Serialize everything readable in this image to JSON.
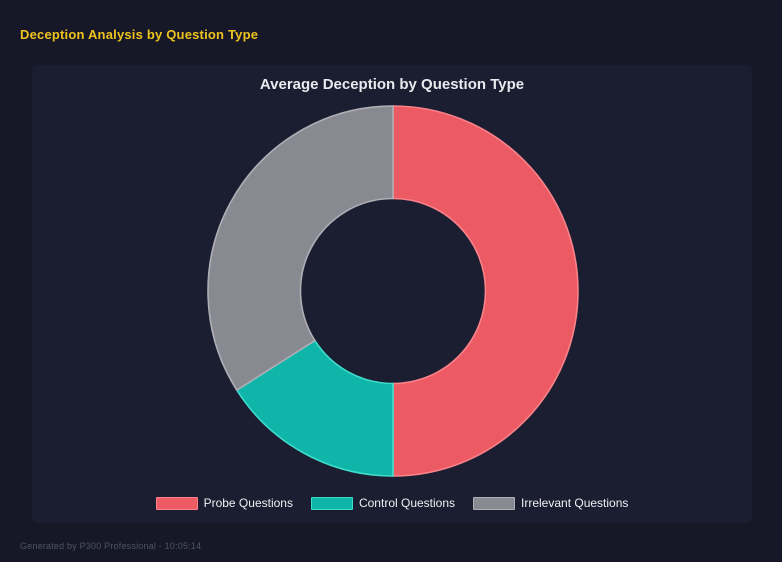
{
  "page": {
    "title": "Deception Analysis by Question Type",
    "footer": "Generated by P300 Professional - 10:05:14",
    "background_color": "#161827",
    "panel_background_color": "#1b1d30",
    "title_color": "#eec31e"
  },
  "chart_data": {
    "type": "pie",
    "subtype": "donut",
    "title": "Average Deception by Question Type",
    "labels": [
      "Probe Questions",
      "Control Questions",
      "Irrelevant Questions"
    ],
    "slice_names": [
      "probe-questions",
      "control-questions",
      "irrelevant-questions"
    ],
    "values_pct": [
      50,
      16,
      34
    ],
    "colors": [
      "#ec5a64",
      "#10b5a9",
      "#898991"
    ],
    "border_colors": [
      "#f9828a",
      "#3fdccb",
      "#aeaeb5"
    ],
    "start_angle_deg": 0,
    "direction": "clockwise",
    "cutout_ratio": 0.5,
    "legend_position": "bottom",
    "text_color": "#eef0f4"
  }
}
